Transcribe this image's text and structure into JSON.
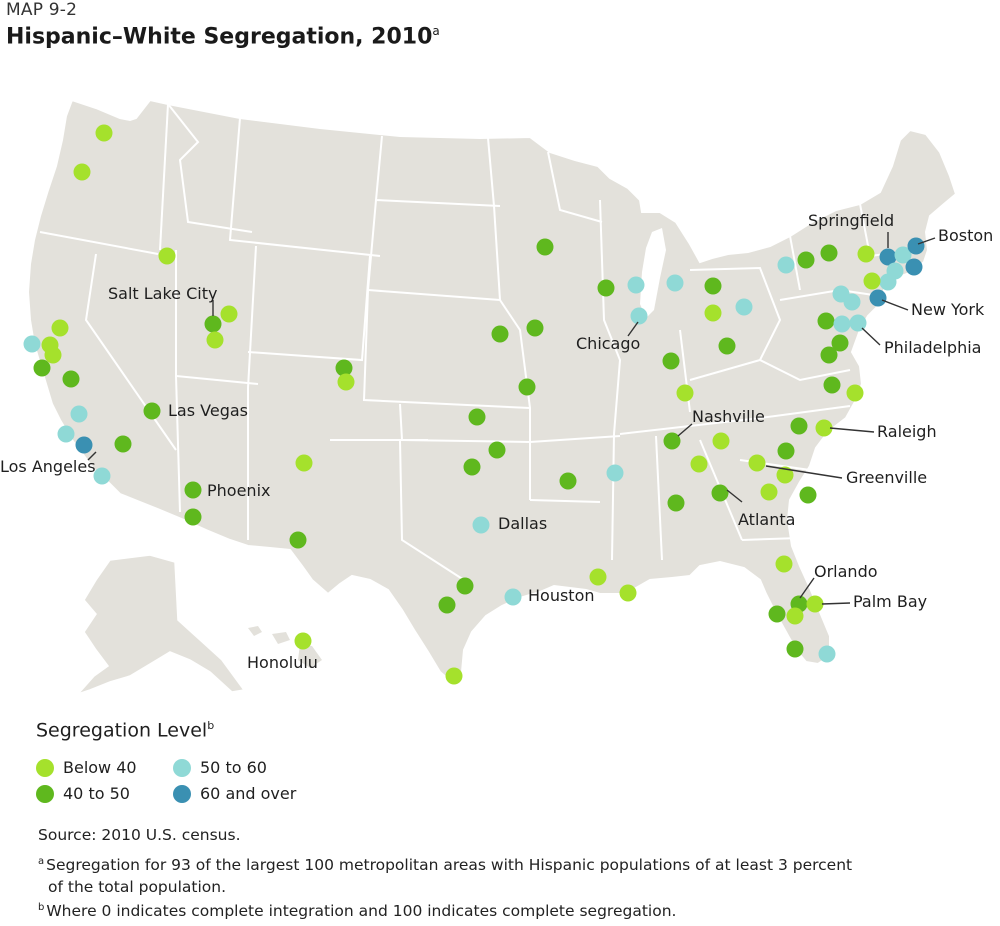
{
  "header": {
    "map_label": "MAP 9-2",
    "title": "Hispanic–White Segregation, 2010",
    "title_footnote": "a"
  },
  "colors": {
    "land": "#e3e1db",
    "border": "#ffffff",
    "below_40": "#a5e12c",
    "40_to_50": "#5fb81e",
    "50_to_60": "#8fd9d6",
    "60_and_over": "#3a90b2"
  },
  "legend": {
    "title": "Segregation Level",
    "title_footnote": "b",
    "items": [
      {
        "label": "Below 40",
        "category": "below_40"
      },
      {
        "label": "40 to 50",
        "category": "40_to_50"
      },
      {
        "label": "50 to 60",
        "category": "50_to_60"
      },
      {
        "label": "60 and over",
        "category": "60_and_over"
      }
    ]
  },
  "city_labels": [
    "Salt Lake City",
    "Las Vegas",
    "Los Angeles",
    "Phoenix",
    "Honolulu",
    "Dallas",
    "Houston",
    "Chicago",
    "Nashville",
    "Atlanta",
    "Orlando",
    "Palm Bay",
    "Raleigh",
    "Greenville",
    "Philadelphia",
    "New York",
    "Springfield",
    "Boston"
  ],
  "notes": {
    "source": "Source: 2010 U.S. census.",
    "footnote_a_mark": "a",
    "footnote_a": "Segregation for 93 of the largest 100 metropolitan areas with Hispanic populations of at least 3 percent",
    "footnote_a_cont": "of the total population.",
    "footnote_b_mark": "b",
    "footnote_b": "Where 0 indicates complete integration and 100 indicates complete segregation."
  }
}
